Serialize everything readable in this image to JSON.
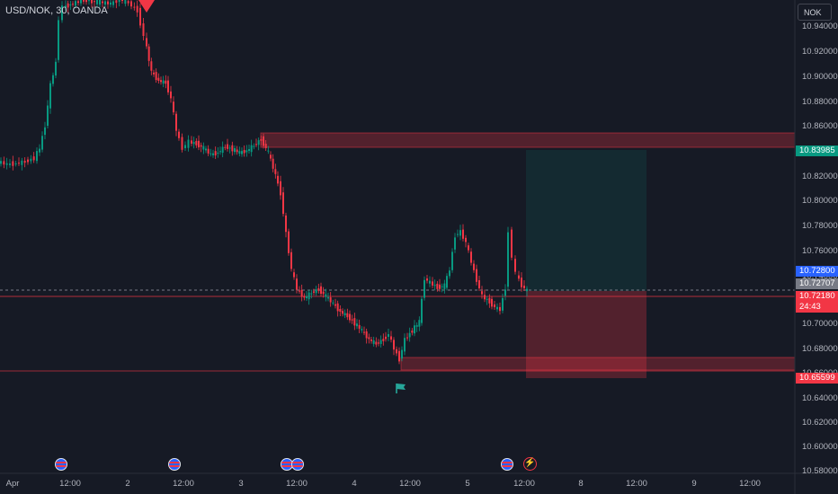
{
  "symbol": {
    "label": "USD/NOK, 30, OANDA"
  },
  "currency_button": {
    "label": "NOK"
  },
  "price_axis": {
    "ticks": [
      "10.94000",
      "10.92000",
      "10.90000",
      "10.88000",
      "10.86000",
      "10.84000",
      "10.82000",
      "10.80000",
      "10.78000",
      "10.76000",
      "10.74000",
      "10.72000",
      "10.70000",
      "10.68000",
      "10.66000",
      "10.64000",
      "10.62000",
      "10.60000",
      "10.58000"
    ],
    "tags": [
      {
        "label": "10.83985",
        "color": "#089981"
      },
      {
        "label": "10.72800",
        "color": "#2962ff"
      },
      {
        "label": "10.72707",
        "color": "#787b86"
      },
      {
        "label": "10.72180",
        "color": "#f23645"
      },
      {
        "label": "24:43",
        "color": "#f23645"
      },
      {
        "label": "10.65599",
        "color": "#f23645"
      }
    ]
  },
  "time_axis": {
    "ticks": [
      "Apr",
      "12:00",
      "2",
      "12:00",
      "3",
      "12:00",
      "4",
      "12:00",
      "5",
      "12:00",
      "8",
      "12:00",
      "9",
      "12:00"
    ]
  },
  "colors": {
    "up": "#089981",
    "down": "#f23645",
    "background": "#161a25"
  }
}
